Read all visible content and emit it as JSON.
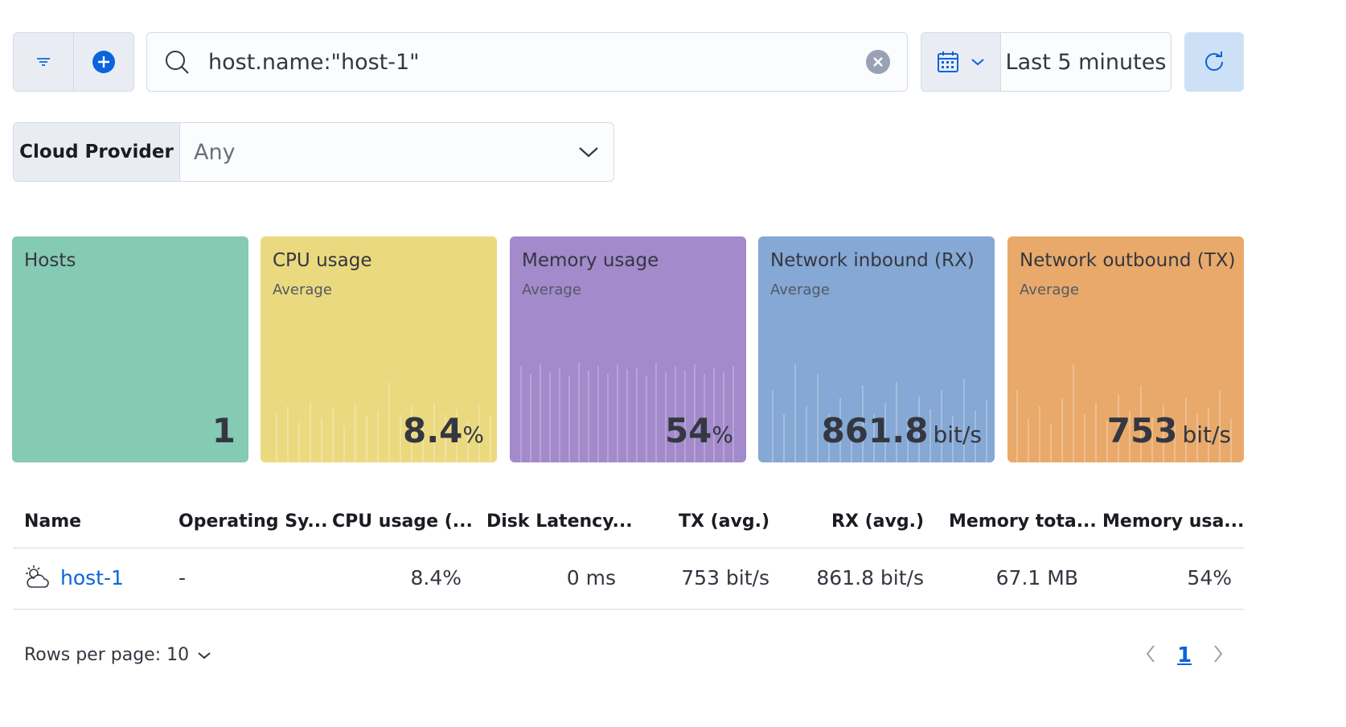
{
  "query_bar": {
    "query_text": "host.name:\"host-1\"",
    "time_range": "Last 5 minutes"
  },
  "control": {
    "label": "Cloud Provider",
    "value": "Any"
  },
  "kpis": [
    {
      "title": "Hosts",
      "subtitle": "",
      "value": "1",
      "unit": "",
      "color": "#85cab2"
    },
    {
      "title": "CPU usage",
      "subtitle": "Average",
      "value": "8.4",
      "unit": "%",
      "color": "#ebd97f"
    },
    {
      "title": "Memory usage",
      "subtitle": "Average",
      "value": "54",
      "unit": "%",
      "color": "#a28acb"
    },
    {
      "title": "Network inbound (RX)",
      "subtitle": "Average",
      "value": "861.8",
      "unit": "bit/s",
      "color": "#85a8d4"
    },
    {
      "title": "Network outbound (TX)",
      "subtitle": "Average",
      "value": "753",
      "unit": "bit/s",
      "color": "#e9a96a"
    }
  ],
  "table": {
    "columns": [
      "Name",
      "Operating Sy...",
      "CPU usage (...",
      "Disk Latency...",
      "TX (avg.)",
      "RX (avg.)",
      "Memory tota...",
      "Memory usa..."
    ],
    "rows": [
      {
        "icon": "cloud-sun-icon",
        "name": "host-1",
        "os": "-",
        "cpu": "8.4%",
        "disk_latency": "0 ms",
        "tx": "753 bit/s",
        "rx": "861.8 bit/s",
        "memory_total": "67.1 MB",
        "memory_usage": "54%"
      }
    ]
  },
  "pagination": {
    "rows_per_page": "Rows per page: 10",
    "current_page": "1"
  }
}
